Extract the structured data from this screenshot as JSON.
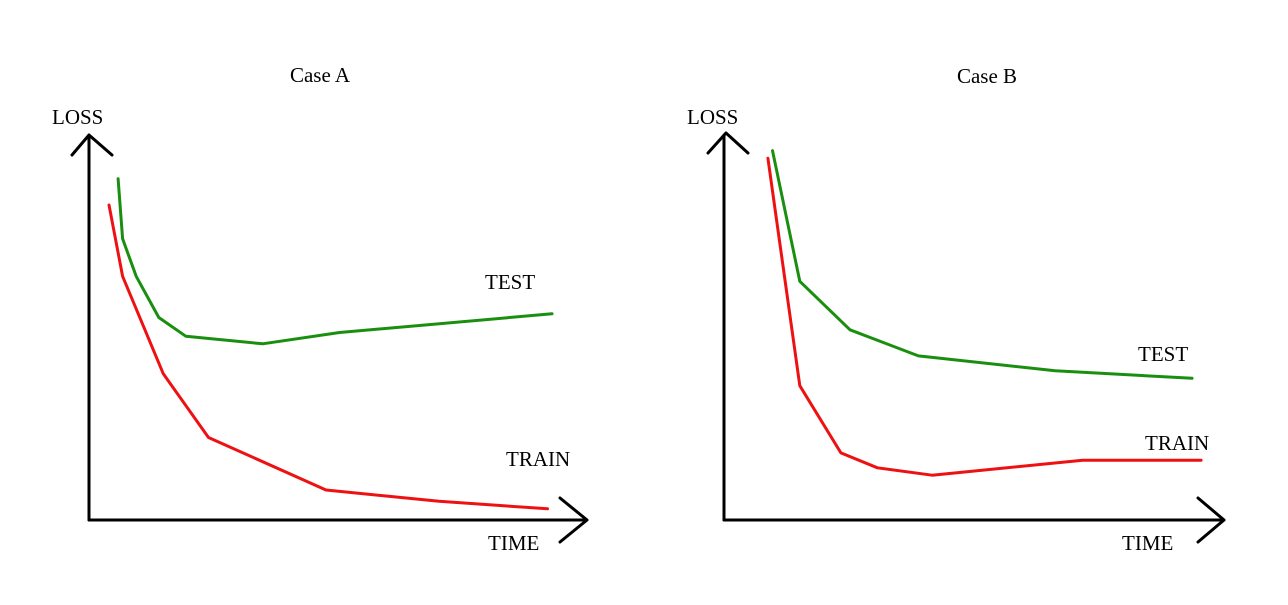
{
  "chart_data": [
    {
      "type": "line",
      "title": "Case A",
      "xlabel": "TIME",
      "ylabel": "LOSS",
      "xlim": [
        0,
        100
      ],
      "ylim": [
        0,
        100
      ],
      "grid": false,
      "series": [
        {
          "name": "TEST",
          "color": "#1a8f0f",
          "x": [
            4,
            5,
            8,
            13,
            19,
            36,
            53,
            100
          ],
          "y": [
            91,
            75,
            65,
            54,
            49,
            47,
            50,
            55
          ]
        },
        {
          "name": "TRAIN",
          "color": "#ee1111",
          "x": [
            2,
            5,
            14,
            24,
            50,
            75,
            99
          ],
          "y": [
            84,
            65,
            39,
            22,
            8,
            5,
            3
          ]
        }
      ]
    },
    {
      "type": "line",
      "title": "Case B",
      "xlabel": "TIME",
      "ylabel": "LOSS",
      "xlim": [
        0,
        100
      ],
      "ylim": [
        0,
        100
      ],
      "grid": false,
      "series": [
        {
          "name": "TEST",
          "color": "#1a8f0f",
          "x": [
            8,
            14,
            25,
            40,
            70,
            100
          ],
          "y": [
            99,
            64,
            51,
            44,
            40,
            38
          ]
        },
        {
          "name": "TRAIN",
          "color": "#ee1111",
          "x": [
            7,
            14,
            23,
            31,
            43,
            76,
            102
          ],
          "y": [
            97,
            36,
            18,
            14,
            12,
            16,
            16
          ]
        }
      ]
    }
  ]
}
